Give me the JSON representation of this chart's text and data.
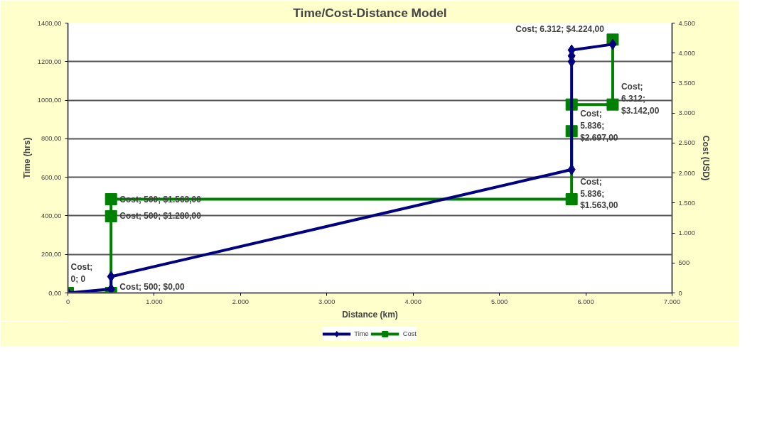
{
  "chart_data": {
    "type": "line",
    "title": "Time/Cost-Distance Model",
    "xlabel": "Distance (km)",
    "ylabel": "Time (hrs)",
    "y2label": "Cost (USD)",
    "xlim": [
      0,
      7000
    ],
    "xticks": [
      {
        "value": 0,
        "label": "0"
      },
      {
        "value": 1000,
        "label": "1.000"
      },
      {
        "value": 2000,
        "label": "2.000"
      },
      {
        "value": 3000,
        "label": "3.000"
      },
      {
        "value": 4000,
        "label": "4.000"
      },
      {
        "value": 5000,
        "label": "5.000"
      },
      {
        "value": 6000,
        "label": "6.000"
      },
      {
        "value": 7000,
        "label": "7.000"
      }
    ],
    "ylim": [
      0,
      1400
    ],
    "yticks": [
      {
        "value": 0,
        "label": "0,00"
      },
      {
        "value": 200,
        "label": "200,00"
      },
      {
        "value": 400,
        "label": "400,00"
      },
      {
        "value": 600,
        "label": "600,00"
      },
      {
        "value": 800,
        "label": "800,00"
      },
      {
        "value": 1000,
        "label": "1000,00"
      },
      {
        "value": 1200,
        "label": "1200,00"
      },
      {
        "value": 1400,
        "label": "1400,00"
      }
    ],
    "y2lim": [
      0,
      4500
    ],
    "y2ticks": [
      0,
      {
        "value": 500,
        "label": "500"
      },
      {
        "value": 1000,
        "label": "1.000"
      },
      {
        "value": 1500,
        "label": "1.500"
      },
      {
        "value": 2000,
        "label": "2.000"
      },
      {
        "value": 2500,
        "label": "2.500"
      },
      {
        "value": 3000,
        "label": "3.000"
      },
      {
        "value": 3500,
        "label": "3.500"
      },
      {
        "value": 4000,
        "label": "4.000"
      },
      {
        "value": 4500,
        "label": "4.500"
      }
    ],
    "grid": "y",
    "legend": "bottom",
    "series": [
      {
        "name": "Time",
        "color": "#000080",
        "marker": "diamond",
        "x": [
          0,
          500,
          500,
          5836,
          5836,
          5836,
          5836,
          6312
        ],
        "values": [
          0,
          20,
          85,
          640,
          1200,
          1230,
          1260,
          1290
        ]
      },
      {
        "name": "Cost",
        "color": "#008000",
        "marker": "square",
        "axis": "y2",
        "x": [
          0,
          500,
          500,
          500,
          5836,
          5836,
          5836,
          6312,
          6312
        ],
        "values": [
          0,
          0,
          1280,
          1563,
          1563,
          2697,
          3142,
          3142,
          4224
        ],
        "value_labels": [
          "Cost; 0; 0",
          "Cost; 500; $0,00",
          "Cost; 500; $1.280,00",
          "Cost; 500; $1.563,00",
          "Cost; 5.836; $1.563,00",
          "Cost; 5.836; $2.697,00",
          null,
          "Cost; 6.312; $3.142,00",
          "Cost; 6.312; $4.224,00"
        ]
      }
    ]
  }
}
